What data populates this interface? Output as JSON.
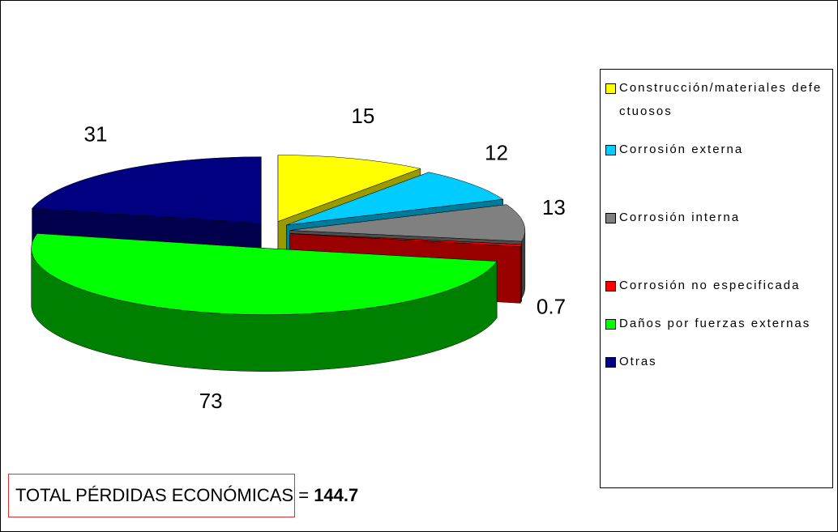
{
  "chart_data": {
    "type": "pie",
    "categories": [
      "Construcción/materiales defectuosos",
      "Corrosión externa",
      "Corrosión interna",
      "Corrosión no especificada",
      "Daños por fuerzas externas",
      "Otras"
    ],
    "values": [
      15,
      12,
      13,
      0.7,
      73,
      31
    ],
    "colors": [
      "#ffff00",
      "#00ccff",
      "#808080",
      "#ff0000",
      "#00ff00",
      "#000080"
    ],
    "legend": "right",
    "annotation": {
      "text": "TOTAL PÉRDIDAS ECONÓMICAS =",
      "value": 144.7
    }
  }
}
